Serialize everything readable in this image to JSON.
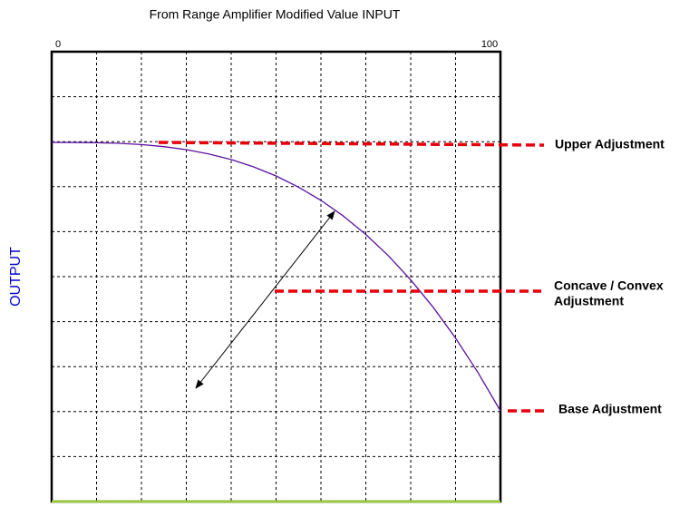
{
  "title": "From Range Amplifier Modified Value INPUT",
  "x_axis": {
    "start": 0,
    "end": 100
  },
  "y_axis_label": "OUTPUT",
  "annotations": {
    "upper": "Upper Adjustment",
    "concave_line1": "Concave / Convex",
    "concave_line2": "Adjustment",
    "base": "Base Adjustment"
  }
}
